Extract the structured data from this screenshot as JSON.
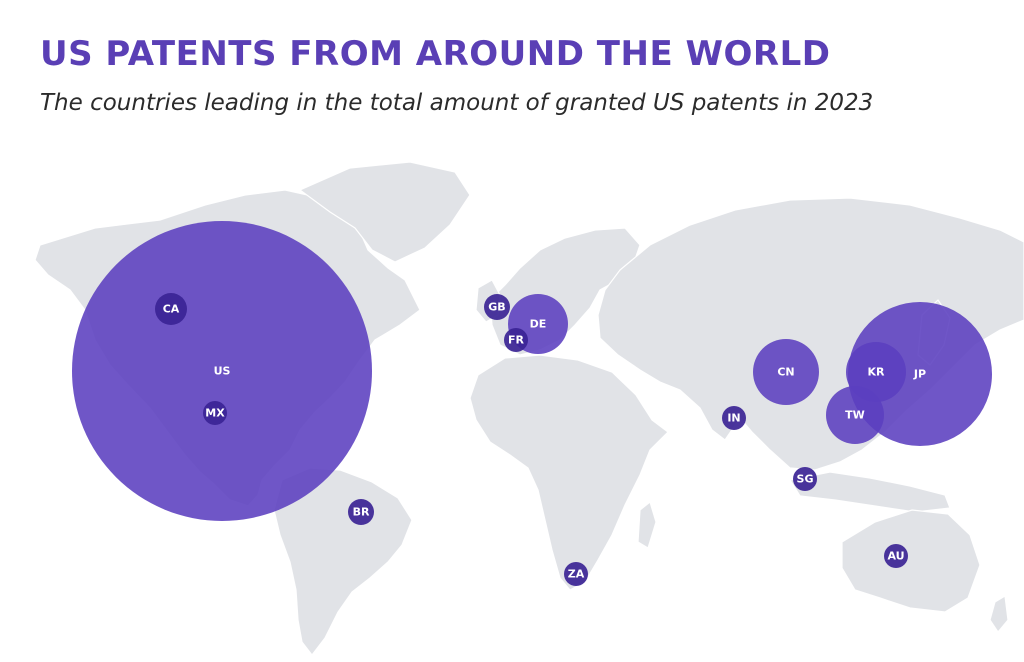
{
  "title": "US PATENTS FROM AROUND THE WORLD",
  "subtitle": "The countries leading in the total amount of granted US patents in 2023",
  "colors": {
    "bubble": "#5b3fbf",
    "bubble_small": "#3b2495",
    "land": "#e1e3e7",
    "title": "#5a3fb5"
  },
  "countries": [
    {
      "code": "US"
    },
    {
      "code": "CA"
    },
    {
      "code": "MX"
    },
    {
      "code": "BR"
    },
    {
      "code": "GB"
    },
    {
      "code": "DE"
    },
    {
      "code": "FR"
    },
    {
      "code": "ZA"
    },
    {
      "code": "IN"
    },
    {
      "code": "CN"
    },
    {
      "code": "KR"
    },
    {
      "code": "JP"
    },
    {
      "code": "TW"
    },
    {
      "code": "SG"
    },
    {
      "code": "AU"
    }
  ]
}
